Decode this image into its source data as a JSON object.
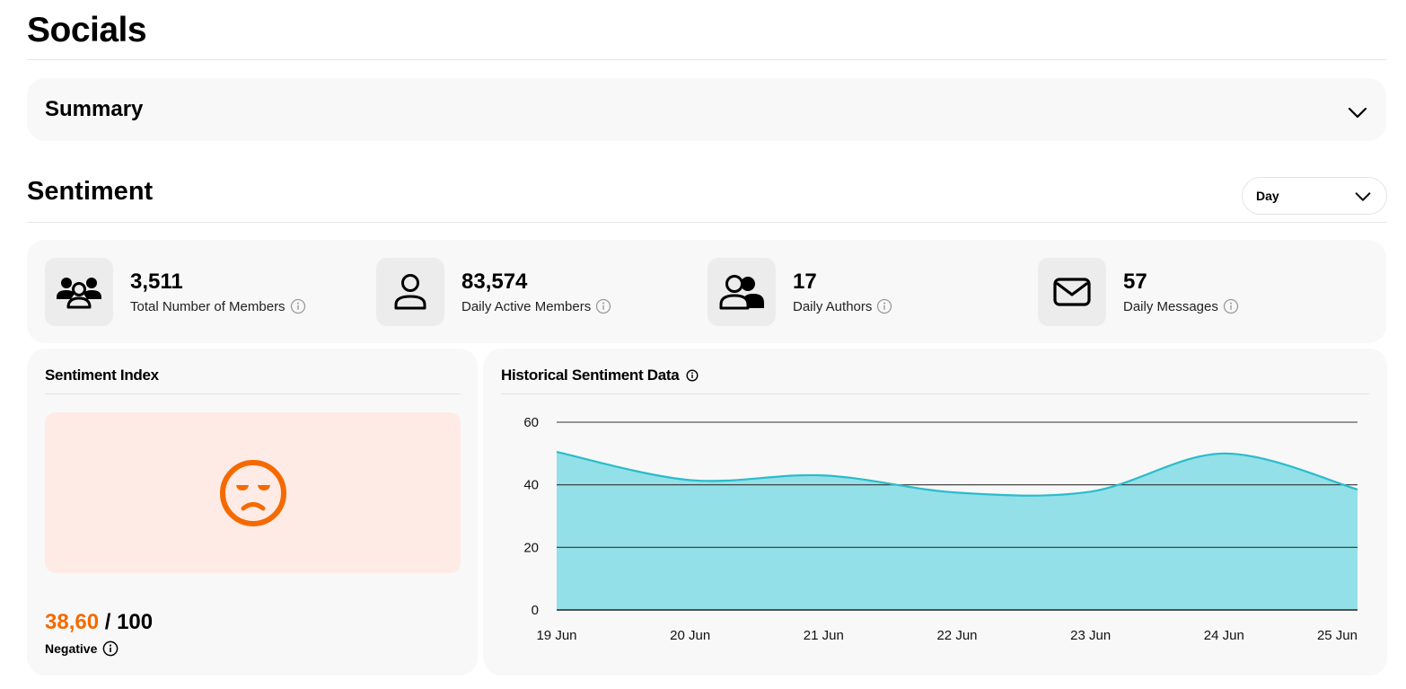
{
  "page": {
    "title": "Socials"
  },
  "summary": {
    "label": "Summary"
  },
  "sentiment": {
    "title": "Sentiment",
    "period": {
      "selected": "Day"
    }
  },
  "stats": [
    {
      "icon": "group-icon",
      "value": "3,511",
      "label": "Total Number of Members"
    },
    {
      "icon": "user-icon",
      "value": "83,574",
      "label": "Daily Active Members"
    },
    {
      "icon": "authors-icon",
      "value": "17",
      "label": "Daily Authors"
    },
    {
      "icon": "mail-icon",
      "value": "57",
      "label": "Daily Messages"
    }
  ],
  "sentiment_index": {
    "title": "Sentiment Index",
    "score": "38,60",
    "max": "/ 100",
    "verdict": "Negative",
    "face_icon": "sad-face-icon",
    "accent": "#f56a00",
    "background": "#feebe6"
  },
  "history": {
    "title": "Historical Sentiment Data"
  },
  "chart_data": {
    "type": "area",
    "title": "Historical Sentiment Data",
    "categories": [
      "19 Jun",
      "20 Jun",
      "21 Jun",
      "22 Jun",
      "23 Jun",
      "24 Jun",
      "25 Jun"
    ],
    "series": [
      {
        "values": [
          50.5,
          41.5,
          43,
          37.5,
          37.8,
          50,
          38.5
        ]
      }
    ],
    "yticks": [
      0,
      20,
      40,
      60
    ],
    "ylim": [
      0,
      60
    ],
    "grid": true,
    "fill_color": "#93e0e8",
    "line_color": "#2bbccb"
  }
}
